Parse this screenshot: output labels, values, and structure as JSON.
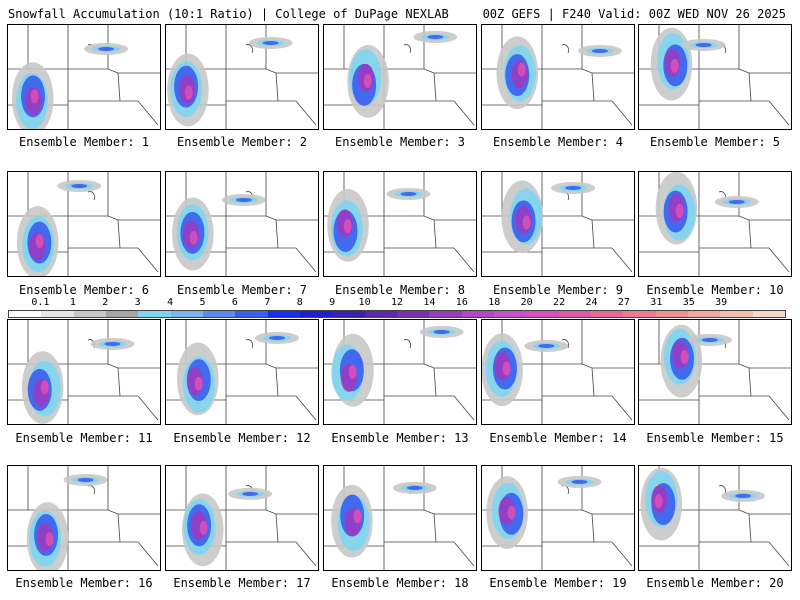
{
  "header": {
    "left_title": "Snowfall Accumulation (10:1 Ratio) | College of DuPage NEXLAB",
    "right_title": "00Z GEFS | F240 Valid: 00Z WED NOV 26 2025"
  },
  "members": [
    {
      "label": "Ensemble Member: 1"
    },
    {
      "label": "Ensemble Member: 2"
    },
    {
      "label": "Ensemble Member: 3"
    },
    {
      "label": "Ensemble Member: 4"
    },
    {
      "label": "Ensemble Member: 5"
    },
    {
      "label": "Ensemble Member: 6"
    },
    {
      "label": "Ensemble Member: 7"
    },
    {
      "label": "Ensemble Member: 8"
    },
    {
      "label": "Ensemble Member: 9"
    },
    {
      "label": "Ensemble Member: 10"
    },
    {
      "label": "Ensemble Member: 11"
    },
    {
      "label": "Ensemble Member: 12"
    },
    {
      "label": "Ensemble Member: 13"
    },
    {
      "label": "Ensemble Member: 14"
    },
    {
      "label": "Ensemble Member: 15"
    },
    {
      "label": "Ensemble Member: 16"
    },
    {
      "label": "Ensemble Member: 17"
    },
    {
      "label": "Ensemble Member: 18"
    },
    {
      "label": "Ensemble Member: 19"
    },
    {
      "label": "Ensemble Member: 20"
    }
  ],
  "colorbar": {
    "labels": [
      "0.1",
      "1",
      "2",
      "3",
      "4",
      "5",
      "6",
      "7",
      "8",
      "9",
      "10",
      "12",
      "14",
      "16",
      "18",
      "20",
      "22",
      "24",
      "27",
      "31",
      "35",
      "39"
    ],
    "colors": [
      "#ffffff",
      "#e6e6e6",
      "#c8c8c8",
      "#a6a6a6",
      "#7fd6f0",
      "#78b4f0",
      "#5a8cf0",
      "#3b5ef0",
      "#1a2ef0",
      "#2020d0",
      "#3a20b0",
      "#5a28a8",
      "#7a30b0",
      "#9a3cc0",
      "#b048c8",
      "#c850c8",
      "#d850b8",
      "#e058a8",
      "#e86898",
      "#f07a90",
      "#f09090",
      "#f0a8a0",
      "#f0c0b0",
      "#f5d8c8"
    ]
  }
}
